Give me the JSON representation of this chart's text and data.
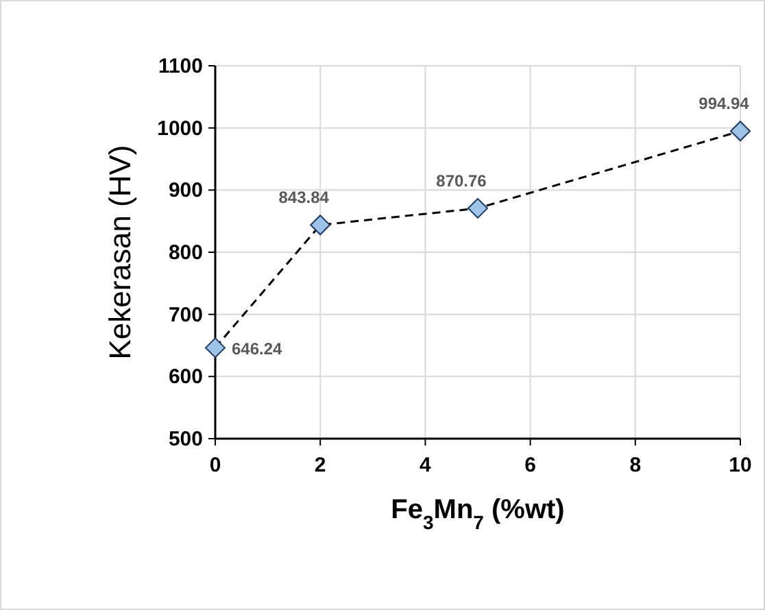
{
  "chart_data": {
    "type": "line",
    "xlabel": "Fe$_{3}$Mn$_{7}$ (%wt)",
    "ylabel": "Kekerasan (HV)",
    "x": [
      0,
      2,
      5,
      10
    ],
    "series": [
      {
        "values": [
          646.24,
          843.84,
          870.76,
          994.94
        ],
        "color": "#9dc3e6"
      }
    ],
    "xlim": [
      0,
      10
    ],
    "xticks": [
      0,
      2,
      4,
      6,
      8,
      10
    ],
    "ylim": [
      500,
      1100
    ],
    "yticks": [
      500,
      600,
      700,
      800,
      900,
      1000,
      1100
    ],
    "grid": true,
    "marker": "diamond",
    "line_style": "dashed",
    "data_labels": true
  }
}
